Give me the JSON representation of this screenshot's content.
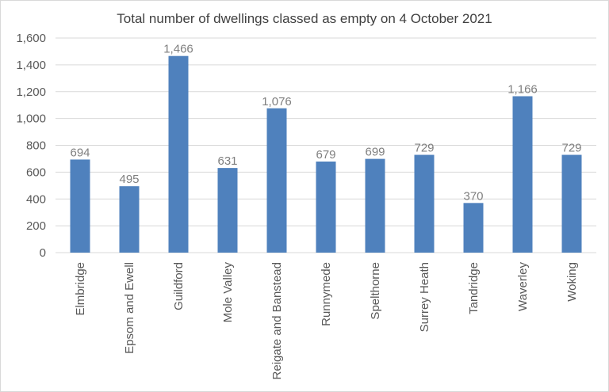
{
  "chart_data": {
    "type": "bar",
    "title": "Total number of dwellings classed as empty on 4 October 2021",
    "categories": [
      "Elmbridge",
      "Epsom and Ewell",
      "Guildford",
      "Mole Valley",
      "Reigate and Banstead",
      "Runnymede",
      "Spelthorne",
      "Surrey Heath",
      "Tandridge",
      "Waverley",
      "Woking"
    ],
    "values": [
      694,
      495,
      1466,
      631,
      1076,
      679,
      699,
      729,
      370,
      1166,
      729
    ],
    "data_labels": [
      "694",
      "495",
      "1,466",
      "631",
      "1,076",
      "679",
      "699",
      "729",
      "370",
      "1,166",
      "729"
    ],
    "y_ticks": [
      0,
      200,
      400,
      600,
      800,
      1000,
      1200,
      1400,
      1600
    ],
    "y_tick_labels": [
      "0",
      "200",
      "400",
      "600",
      "800",
      "1,000",
      "1,200",
      "1,400",
      "1,600"
    ],
    "ylim": [
      0,
      1600
    ],
    "grid": true,
    "bar_color": "#4f81bd",
    "grid_color": "#d9d9d9"
  }
}
